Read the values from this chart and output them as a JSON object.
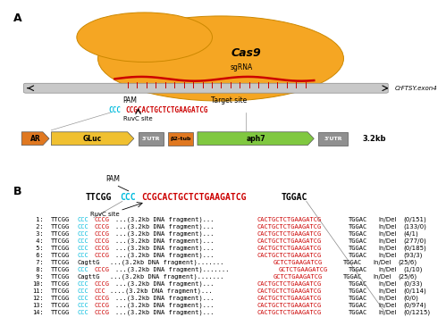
{
  "bg_color": "#ffffff",
  "cas9_blob_color": "#F5A623",
  "cas9_blob_color2": "#F5A623",
  "dna_bar_color": "#C8C8C8",
  "panel_a_label": "A",
  "panel_b_label": "B",
  "cas9_label": "Cas9",
  "sgrna_label": "sgRNA",
  "target_label": "Target site",
  "pam_label": "PAM",
  "ruvc_label": "RuvC site",
  "gene_label": "CrFTSY.exon4",
  "size_label": "3.2kb",
  "gene_map": [
    {
      "label": "AR",
      "color": "#E07820",
      "xstart": 0.03,
      "xend": 0.095,
      "arrow": true
    },
    {
      "label": "GLuc",
      "color": "#F0C030",
      "xstart": 0.1,
      "xend": 0.295,
      "arrow": true
    },
    {
      "label": "3'UTR",
      "color": "#909090",
      "xstart": 0.305,
      "xend": 0.365,
      "arrow": false
    },
    {
      "label": "β2-tub",
      "color": "#E07820",
      "xstart": 0.375,
      "xend": 0.435,
      "arrow": false
    },
    {
      "label": "aph7",
      "color": "#80C840",
      "xstart": 0.445,
      "xend": 0.72,
      "arrow": true
    },
    {
      "label": "3'UTR",
      "color": "#909090",
      "xstart": 0.73,
      "xend": 0.8,
      "arrow": false
    }
  ],
  "ref_header_black1": "TTCGG",
  "ref_header_cyan": "CCC",
  "ref_header_red": "CCGCACTGCTCTGAAGATCG",
  "ref_header_black2": "TGGAC",
  "sequence_lines": [
    {
      "num": " 1:",
      "lb": "TTCGG",
      "lc": "CCC",
      "lr": "CCCG",
      "dots": "...(3.2kb DNA fragment)...",
      "rr": "CACTGCTCTGAAGATCG",
      "rb": "TGGAC",
      "type": "In/Del",
      "count": "(0/151)"
    },
    {
      "num": " 2:",
      "lb": "TTCGG",
      "lc": "CCC",
      "lr": "CCCG",
      "dots": "...(3.2kb DNA fragment)...",
      "rr": "CACTGCTCTGAAGATCG",
      "rb": "TGGAC",
      "type": "In/Del",
      "count": "(133/0)"
    },
    {
      "num": " 3:",
      "lb": "TTCGG",
      "lc": "CCC",
      "lr": "CCCG",
      "dots": "...(3.2kb DNA fragment)...",
      "rr": "CACTGCTCTGAAGATCG",
      "rb": "TGGAC",
      "type": "In/Del",
      "count": "(4/1)"
    },
    {
      "num": " 4:",
      "lb": "TTCGG",
      "lc": "CCC",
      "lr": "CCCG",
      "dots": "...(3.2kb DNA fragment)...",
      "rr": "CACTGCTCTGAAGATCG",
      "rb": "TGGAC",
      "type": "In/Del",
      "count": "(277/0)"
    },
    {
      "num": " 5:",
      "lb": "TTCGG",
      "lc": "CCC",
      "lr": "CCCG",
      "dots": "...(3.2kb DNA fragment)...",
      "rr": "CACTGCTCTGAAGATCG",
      "rb": "TGGAC",
      "type": "In/Del",
      "count": "(0/185)"
    },
    {
      "num": " 6:",
      "lb": "TTCGG",
      "lc": "CCC",
      "lr": "CCCG",
      "dots": "...(3.2kb DNA fragment)...",
      "rr": "CACTGCTCTGAAGATCG",
      "rb": "TGGAC",
      "type": "In/Del",
      "count": "(93/3)"
    },
    {
      "num": " 7:",
      "lb": "TTCGGCagttG",
      "lc": "",
      "lr": "",
      "dots": "...(3.2kb DNA fragment).......",
      "rr": "GCTCTGAAGATCG",
      "rb": "TGGAC",
      "type": "In/Del",
      "count": "(25/6)"
    },
    {
      "num": " 8:",
      "lb": "TTCGG",
      "lc": "CCC",
      "lr": "CCCG",
      "dots": "...(3.2kb DNA fragment).......",
      "rr": "GCTCTGAAGATCG",
      "rb": "TGGAC",
      "type": "In/Del",
      "count": "(1/10)"
    },
    {
      "num": " 9:",
      "lb": "TTCGGCagttG",
      "lc": "",
      "lr": "",
      "dots": "...(3.2kb DNA fragment).......",
      "rr": "GCTCTGAAGATCG",
      "rb": "TGGAC",
      "type": "In/Del",
      "count": "(25/6)"
    },
    {
      "num": "10:",
      "lb": "TTCGG",
      "lc": "CCC",
      "lr": "CCCG",
      "dots": "...(3.2kb DNA fragment)...",
      "rr": "CACTGCTCTGAAGATCG",
      "rb": "TGGAC",
      "type": "In/Del",
      "count": "(0/33)"
    },
    {
      "num": "11:",
      "lb": "TTCGG",
      "lc": "CCC",
      "lr": "CCC",
      "dots": "....(3.2kb DNA fragment)...",
      "rr": "CACTGCTCTGAAGATCG",
      "rb": "TGGAC",
      "type": "In/Del",
      "count": "(0/114)"
    },
    {
      "num": "12:",
      "lb": "TTCGG",
      "lc": "CCC",
      "lr": "CCCG",
      "dots": "...(3.2kb DNA fragment)...",
      "rr": "CACTGCTCTGAAGATCG",
      "rb": "TGGAC",
      "type": "In/Del",
      "count": "(0/0)"
    },
    {
      "num": "13:",
      "lb": "TTCGG",
      "lc": "CCC",
      "lr": "CCCG",
      "dots": "...(3.2kb DNA fragment)...",
      "rr": "CACTGCTCTGAAGATCG",
      "rb": "TGGAC",
      "type": "In/Del",
      "count": "(0/974)"
    },
    {
      "num": "14:",
      "lb": "TTCGG",
      "lc": "CCC",
      "lr": "CCCG",
      "dots": "...(3.2kb DNA fragment)...",
      "rr": "CACTGCTCTGAAGATCG",
      "rb": "TGGAC",
      "type": "In/Del",
      "count": "(0/1215)"
    }
  ]
}
